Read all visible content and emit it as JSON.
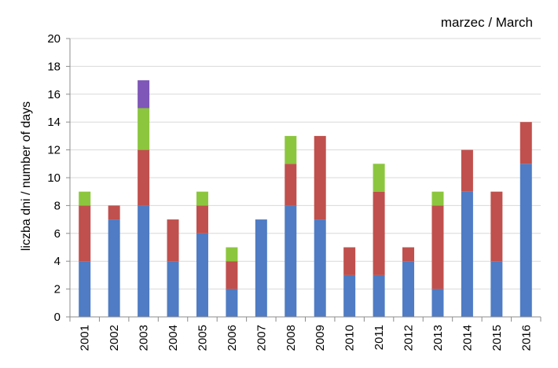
{
  "chart_data": {
    "type": "bar",
    "stacked": true,
    "title": "marzec / March",
    "ylabel": "liczba dni / number of days",
    "xlabel": "",
    "ylim": [
      0,
      20
    ],
    "yticks": [
      0,
      2,
      4,
      6,
      8,
      10,
      12,
      14,
      16,
      18,
      20
    ],
    "grid": true,
    "legend": "none",
    "categories": [
      "2001",
      "2002",
      "2003",
      "2004",
      "2005",
      "2006",
      "2007",
      "2008",
      "2009",
      "2010",
      "2011",
      "2012",
      "2013",
      "2014",
      "2015",
      "2016"
    ],
    "series": [
      {
        "color": "#4f7cc4",
        "values": [
          4,
          7,
          8,
          4,
          6,
          2,
          7,
          8,
          7,
          3,
          3,
          4,
          2,
          9,
          4,
          11
        ]
      },
      {
        "color": "#c0504d",
        "values": [
          4,
          1,
          4,
          3,
          2,
          2,
          0,
          3,
          6,
          2,
          6,
          1,
          6,
          3,
          5,
          3
        ]
      },
      {
        "color": "#8cc63e",
        "values": [
          1,
          0,
          3,
          0,
          1,
          1,
          0,
          2,
          0,
          0,
          2,
          0,
          1,
          0,
          0,
          0
        ]
      },
      {
        "color": "#7e57b8",
        "values": [
          0,
          0,
          2,
          0,
          0,
          0,
          0,
          0,
          0,
          0,
          0,
          0,
          0,
          0,
          0,
          0
        ]
      }
    ]
  }
}
